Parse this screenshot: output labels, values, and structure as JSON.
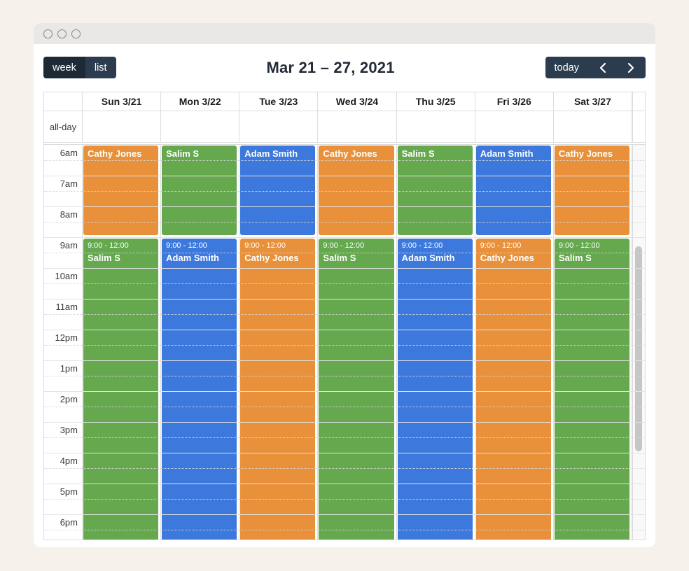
{
  "window": {
    "controls_count": 3
  },
  "toolbar": {
    "view_buttons": [
      {
        "label": "week",
        "active": true
      },
      {
        "label": "list",
        "active": false
      }
    ],
    "title": "Mar 21 – 27, 2021",
    "today_label": "today",
    "prev_icon": "chevron-left",
    "next_icon": "chevron-right"
  },
  "calendar": {
    "all_day_label": "all-day",
    "time_labels": [
      "6am",
      "7am",
      "8am",
      "9am",
      "10am",
      "11am",
      "12pm",
      "1pm",
      "2pm",
      "3pm",
      "4pm",
      "5pm",
      "6pm"
    ],
    "palette": {
      "orange": "#E8913A",
      "green": "#65A84E",
      "blue": "#3D79DC",
      "accent_dark": "#2b3c4e",
      "accent_darker": "#1d2935"
    },
    "days": [
      {
        "header": "Sun 3/21",
        "events": [
          {
            "title": "Cathy Jones",
            "color": "orange"
          },
          {
            "time": "9:00 - 12:00",
            "title": "Salim S",
            "color": "green"
          }
        ]
      },
      {
        "header": "Mon 3/22",
        "events": [
          {
            "title": "Salim S",
            "color": "green"
          },
          {
            "time": "9:00 - 12:00",
            "title": "Adam Smith",
            "color": "blue"
          }
        ]
      },
      {
        "header": "Tue 3/23",
        "events": [
          {
            "title": "Adam Smith",
            "color": "blue"
          },
          {
            "time": "9:00 - 12:00",
            "title": "Cathy Jones",
            "color": "orange"
          }
        ]
      },
      {
        "header": "Wed 3/24",
        "events": [
          {
            "title": "Cathy Jones",
            "color": "orange"
          },
          {
            "time": "9:00 - 12:00",
            "title": "Salim S",
            "color": "green"
          }
        ]
      },
      {
        "header": "Thu 3/25",
        "events": [
          {
            "title": "Salim S",
            "color": "green"
          },
          {
            "time": "9:00 - 12:00",
            "title": "Adam Smith",
            "color": "blue"
          }
        ]
      },
      {
        "header": "Fri 3/26",
        "events": [
          {
            "title": "Adam Smith",
            "color": "blue"
          },
          {
            "time": "9:00 - 12:00",
            "title": "Cathy Jones",
            "color": "orange"
          }
        ]
      },
      {
        "header": "Sat 3/27",
        "events": [
          {
            "title": "Cathy Jones",
            "color": "orange"
          },
          {
            "time": "9:00 - 12:00",
            "title": "Salim S",
            "color": "green"
          }
        ]
      }
    ]
  }
}
